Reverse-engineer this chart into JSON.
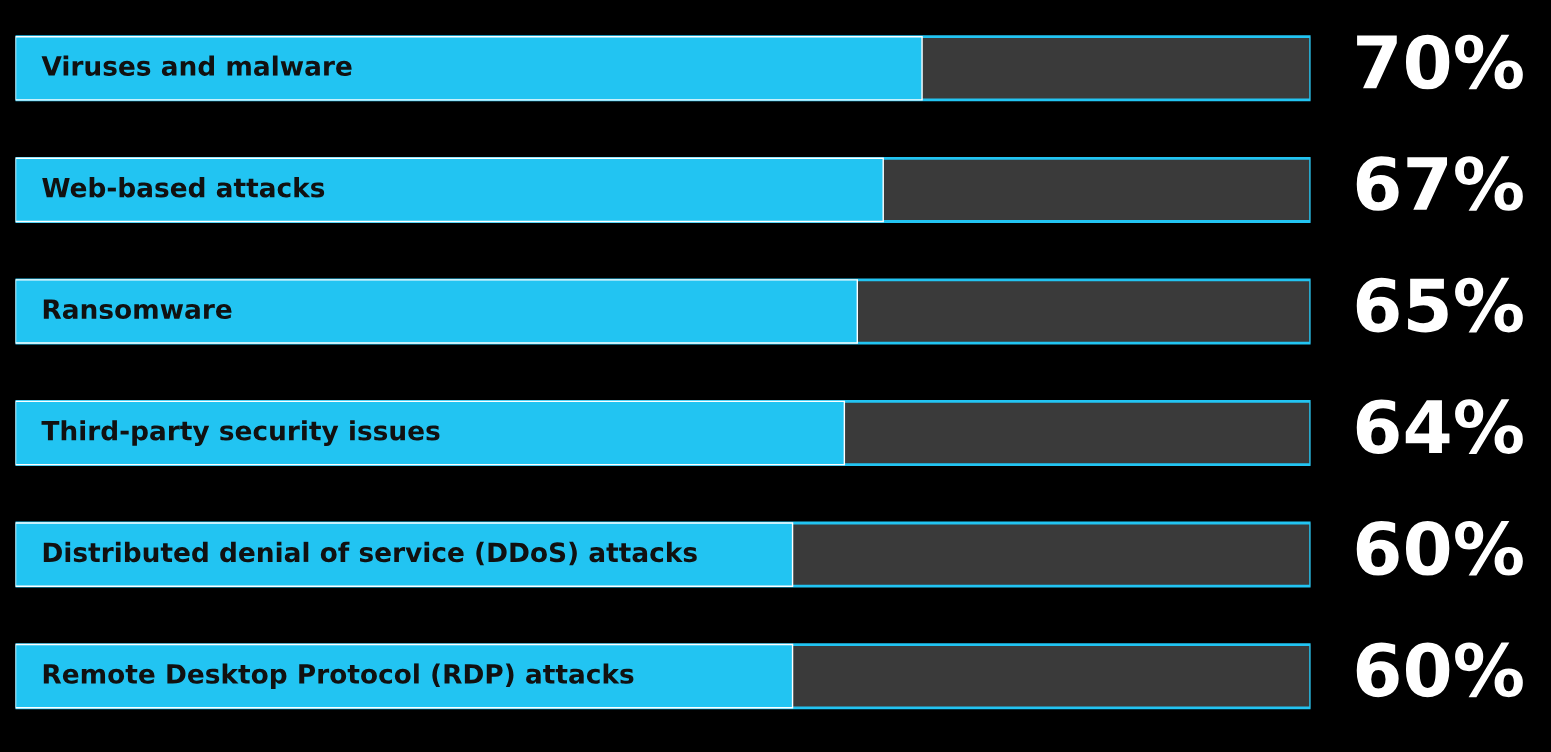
{
  "chart_data": {
    "type": "bar",
    "orientation": "horizontal",
    "categories": [
      "Viruses and malware",
      "Web-based attacks",
      "Ransomware",
      "Third-party security issues",
      "Distributed denial of service (DDoS) attacks",
      "Remote Desktop Protocol (RDP) attacks"
    ],
    "values": [
      70,
      67,
      65,
      64,
      60,
      60
    ],
    "value_labels": [
      "70%",
      "67%",
      "65%",
      "64%",
      "60%",
      "60%"
    ],
    "color": "#22c4f2",
    "xlim": [
      0,
      100
    ],
    "tick_labels": false,
    "grid": false,
    "legend": false
  }
}
